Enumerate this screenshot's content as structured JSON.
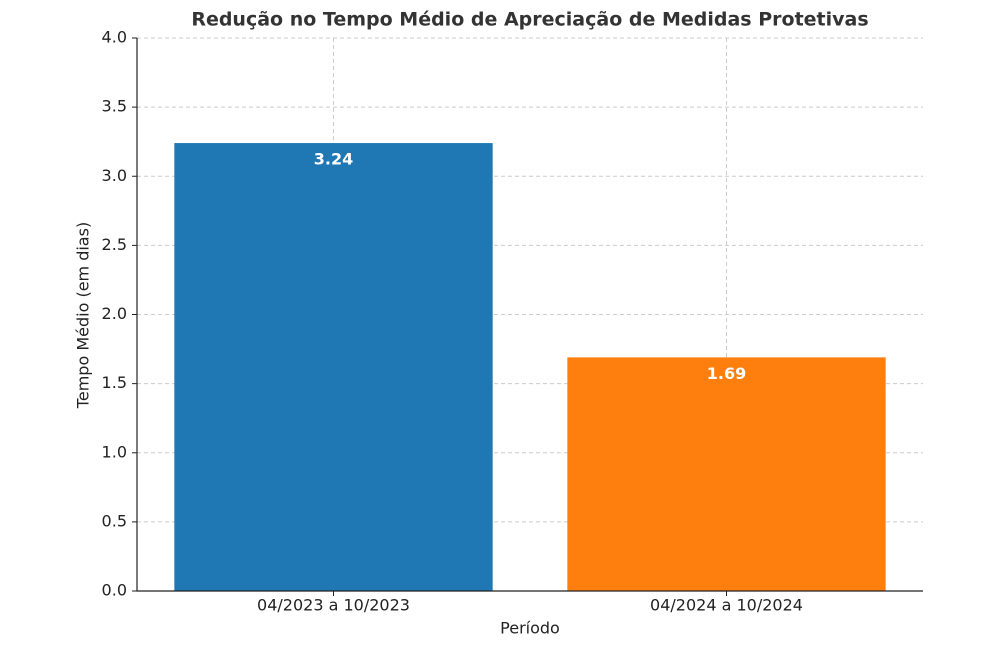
{
  "chart_data": {
    "type": "bar",
    "title": "Redução no Tempo Médio de Apreciação de Medidas Protetivas",
    "x_label": "Período",
    "y_label": "Tempo Médio (em dias)",
    "categories": [
      "04/2023 a 10/2023",
      "04/2024 a 10/2024"
    ],
    "values": [
      3.24,
      1.69
    ],
    "colors": [
      "#1f77b4",
      "#ff7f0e"
    ],
    "ylim": [
      0,
      4
    ],
    "yticks": [
      {
        "value": 0,
        "label": "0.0"
      },
      0.5,
      {
        "value": 1,
        "label": "1.0"
      },
      1.5,
      {
        "value": 2,
        "label": "2.0"
      },
      2.5,
      {
        "value": 3,
        "label": "3.0"
      },
      3.5,
      {
        "value": 4,
        "label": "4.0"
      }
    ],
    "grid": true
  }
}
